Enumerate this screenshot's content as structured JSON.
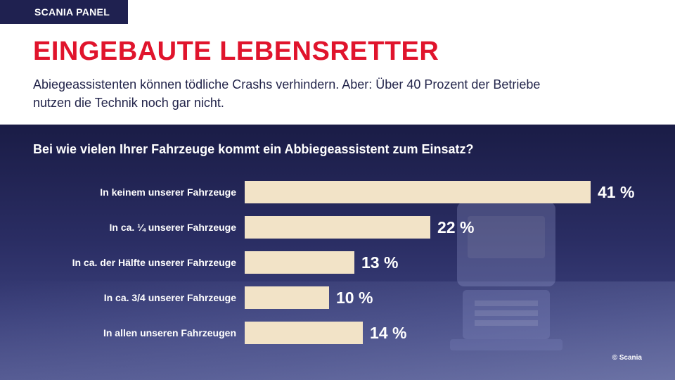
{
  "header": {
    "tag": "SCANIA PANEL",
    "headline": "EINGEBAUTE LEBENSRETTER",
    "subtitle": "Abiegeassistenten können tödliche Crashs verhindern. Aber: Über 40 Prozent der Betriebe nutzen die Technik noch gar nicht."
  },
  "chart_data": {
    "type": "bar",
    "orientation": "horizontal",
    "title": "Bei wie vielen Ihrer Fahrzeuge kommt ein Abbiegeassistent zum Einsatz?",
    "categories": [
      "In keinem unserer Fahrzeuge",
      "In ca. ¼ unserer Fahrzeuge",
      "In ca. der Hälfte unserer Fahrzeuge",
      "In ca. 3/4 unserer Fahrzeuge",
      "In allen unseren Fahrzeugen"
    ],
    "values": [
      41,
      22,
      13,
      10,
      14
    ],
    "value_labels": [
      "41 %",
      "22 %",
      "13 %",
      "10 %",
      "14 %"
    ],
    "unit": "%",
    "xlim": [
      0,
      41
    ],
    "grid": false,
    "legend": "none",
    "bar_color": "#f2e3c7",
    "label_color": "#ffffff"
  },
  "footer": {
    "copyright": "© Scania"
  },
  "colors": {
    "brand_navy": "#1f2150",
    "headline_red": "#e0142c"
  }
}
